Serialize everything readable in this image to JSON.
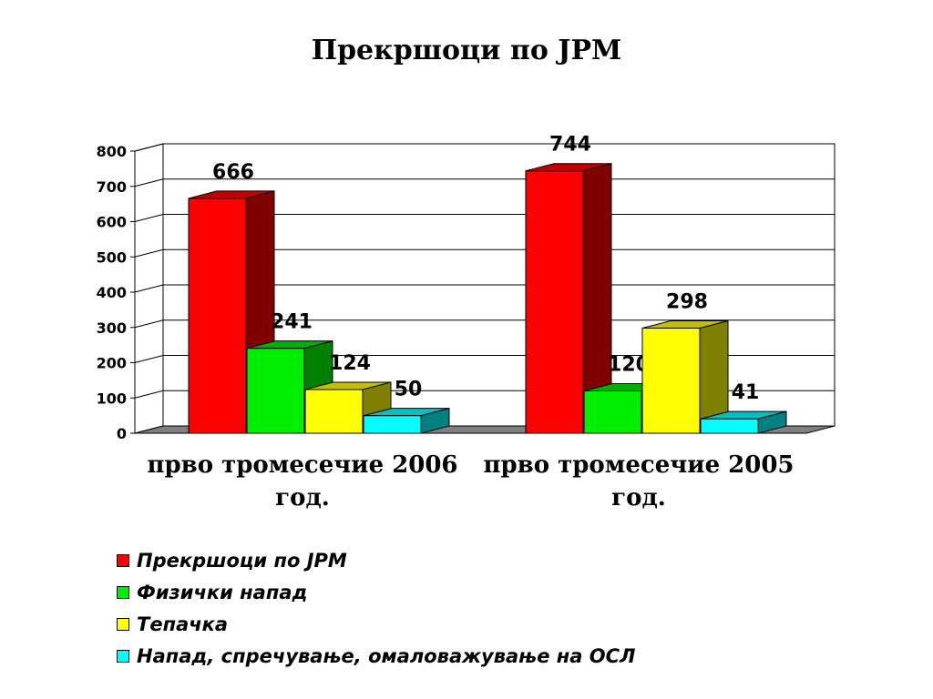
{
  "chart_data": {
    "type": "bar",
    "title": "Прекршоци по ЈРМ",
    "categories": [
      "прво тромесечие 2006 год.",
      "прво тромесечие 2005 год."
    ],
    "category_lines": [
      [
        "прво тромесечие 2006",
        "год."
      ],
      [
        "прво тромесечие 2005",
        "год."
      ]
    ],
    "series": [
      {
        "name": "Прекршоци по ЈРМ",
        "values": [
          666,
          744
        ],
        "color": "#ff0000",
        "side": "#800000",
        "top": "#c00000"
      },
      {
        "name": "Физички напад",
        "values": [
          241,
          120
        ],
        "color": "#00ee00",
        "side": "#008000",
        "top": "#00b000"
      },
      {
        "name": "Тепачка",
        "values": [
          124,
          298
        ],
        "color": "#ffff00",
        "side": "#808000",
        "top": "#c0c000"
      },
      {
        "name": "Напад, спречување, омаловажување на ОСЛ",
        "values": [
          50,
          41
        ],
        "color": "#00ffff",
        "side": "#008080",
        "top": "#00c0c0"
      }
    ],
    "value_labels": [
      [
        "666",
        "241",
        "124",
        "50"
      ],
      [
        "744",
        "120",
        "298",
        "41"
      ]
    ],
    "yticks": [
      "0",
      "100",
      "200",
      "300",
      "400",
      "500",
      "600",
      "700",
      "800"
    ],
    "ylim": [
      0,
      800
    ],
    "grid": true,
    "legend_position": "bottom-left",
    "three_d": true
  }
}
